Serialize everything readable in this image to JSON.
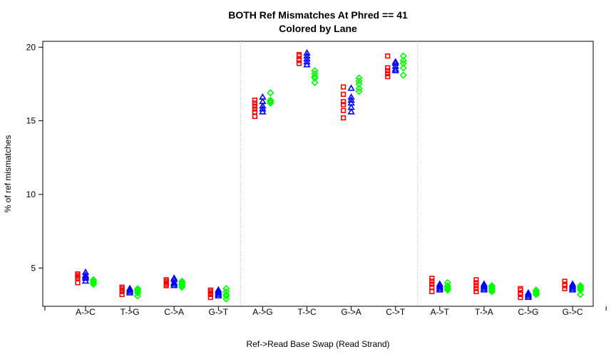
{
  "chart_data": {
    "type": "scatter",
    "title": "BOTH Ref Mismatches At Phred == 41",
    "subtitle": "Colored by Lane",
    "xlabel": "Ref->Read Base Swap (Read Strand)",
    "ylabel": "% of ref mismatches",
    "ylim": [
      2.4,
      20.4
    ],
    "yticks": [
      "5",
      "10",
      "15",
      "20"
    ],
    "grid": false,
    "legend": "none",
    "categories": [
      "A->C",
      "T->G",
      "C->A",
      "G->T",
      "A->G",
      "T->C",
      "G->A",
      "C->T",
      "A->T",
      "T->A",
      "C->G",
      "G->C"
    ],
    "group_separators_after": [
      4,
      8
    ],
    "series": [
      {
        "marker": "square",
        "color": "#ff0000",
        "values": [
          [
            4.0,
            4.3,
            4.4,
            4.5,
            4.6
          ],
          [
            3.2,
            3.4,
            3.5,
            3.6,
            3.7
          ],
          [
            3.8,
            3.9,
            4.0,
            4.1,
            4.2
          ],
          [
            3.0,
            3.2,
            3.3,
            3.4,
            3.5
          ],
          [
            15.3,
            15.6,
            15.8,
            16.0,
            16.2,
            16.4
          ],
          [
            18.9,
            19.1,
            19.2,
            19.4,
            19.5
          ],
          [
            15.2,
            15.7,
            16.1,
            16.3,
            16.8,
            17.3
          ],
          [
            18.0,
            18.2,
            18.4,
            18.6,
            19.4
          ],
          [
            3.4,
            3.7,
            3.9,
            4.1,
            4.3
          ],
          [
            3.4,
            3.6,
            3.8,
            4.0,
            4.2
          ],
          [
            3.0,
            3.2,
            3.3,
            3.5,
            3.6
          ],
          [
            3.6,
            3.8,
            3.9,
            4.1
          ]
        ]
      },
      {
        "marker": "triangle",
        "color": "#0000ff",
        "values": [
          [
            4.1,
            4.3,
            4.4,
            4.5,
            4.7
          ],
          [
            3.3,
            3.4,
            3.5,
            3.6
          ],
          [
            3.8,
            3.9,
            4.0,
            4.2,
            4.3
          ],
          [
            3.1,
            3.2,
            3.3,
            3.4,
            3.5
          ],
          [
            15.6,
            15.8,
            16.0,
            16.3,
            16.6
          ],
          [
            18.8,
            19.0,
            19.2,
            19.4,
            19.6
          ],
          [
            15.6,
            15.9,
            16.2,
            16.4,
            16.6,
            17.2
          ],
          [
            18.4,
            18.5,
            18.7,
            18.9,
            19.0
          ],
          [
            3.5,
            3.6,
            3.7,
            3.8,
            3.9
          ],
          [
            3.5,
            3.6,
            3.7,
            3.8,
            3.9
          ],
          [
            3.0,
            3.1,
            3.2,
            3.3
          ],
          [
            3.5,
            3.6,
            3.7,
            3.8,
            3.9
          ]
        ]
      },
      {
        "marker": "diamond",
        "color": "#00ff00",
        "values": [
          [
            3.9,
            4.0,
            4.1,
            4.2
          ],
          [
            3.1,
            3.3,
            3.4,
            3.5,
            3.6
          ],
          [
            3.7,
            3.8,
            3.9,
            4.0,
            4.1
          ],
          [
            2.9,
            3.1,
            3.2,
            3.4,
            3.6
          ],
          [
            16.2,
            16.3,
            16.4,
            16.9
          ],
          [
            17.6,
            17.9,
            18.0,
            18.2,
            18.4
          ],
          [
            17.0,
            17.2,
            17.5,
            17.7,
            17.9
          ],
          [
            18.1,
            18.6,
            18.9,
            19.1,
            19.4
          ],
          [
            3.5,
            3.6,
            3.7,
            3.8,
            4.0
          ],
          [
            3.4,
            3.5,
            3.6,
            3.7,
            3.8
          ],
          [
            3.2,
            3.3,
            3.4,
            3.5
          ],
          [
            3.2,
            3.5,
            3.6,
            3.7,
            3.8
          ]
        ]
      }
    ]
  }
}
